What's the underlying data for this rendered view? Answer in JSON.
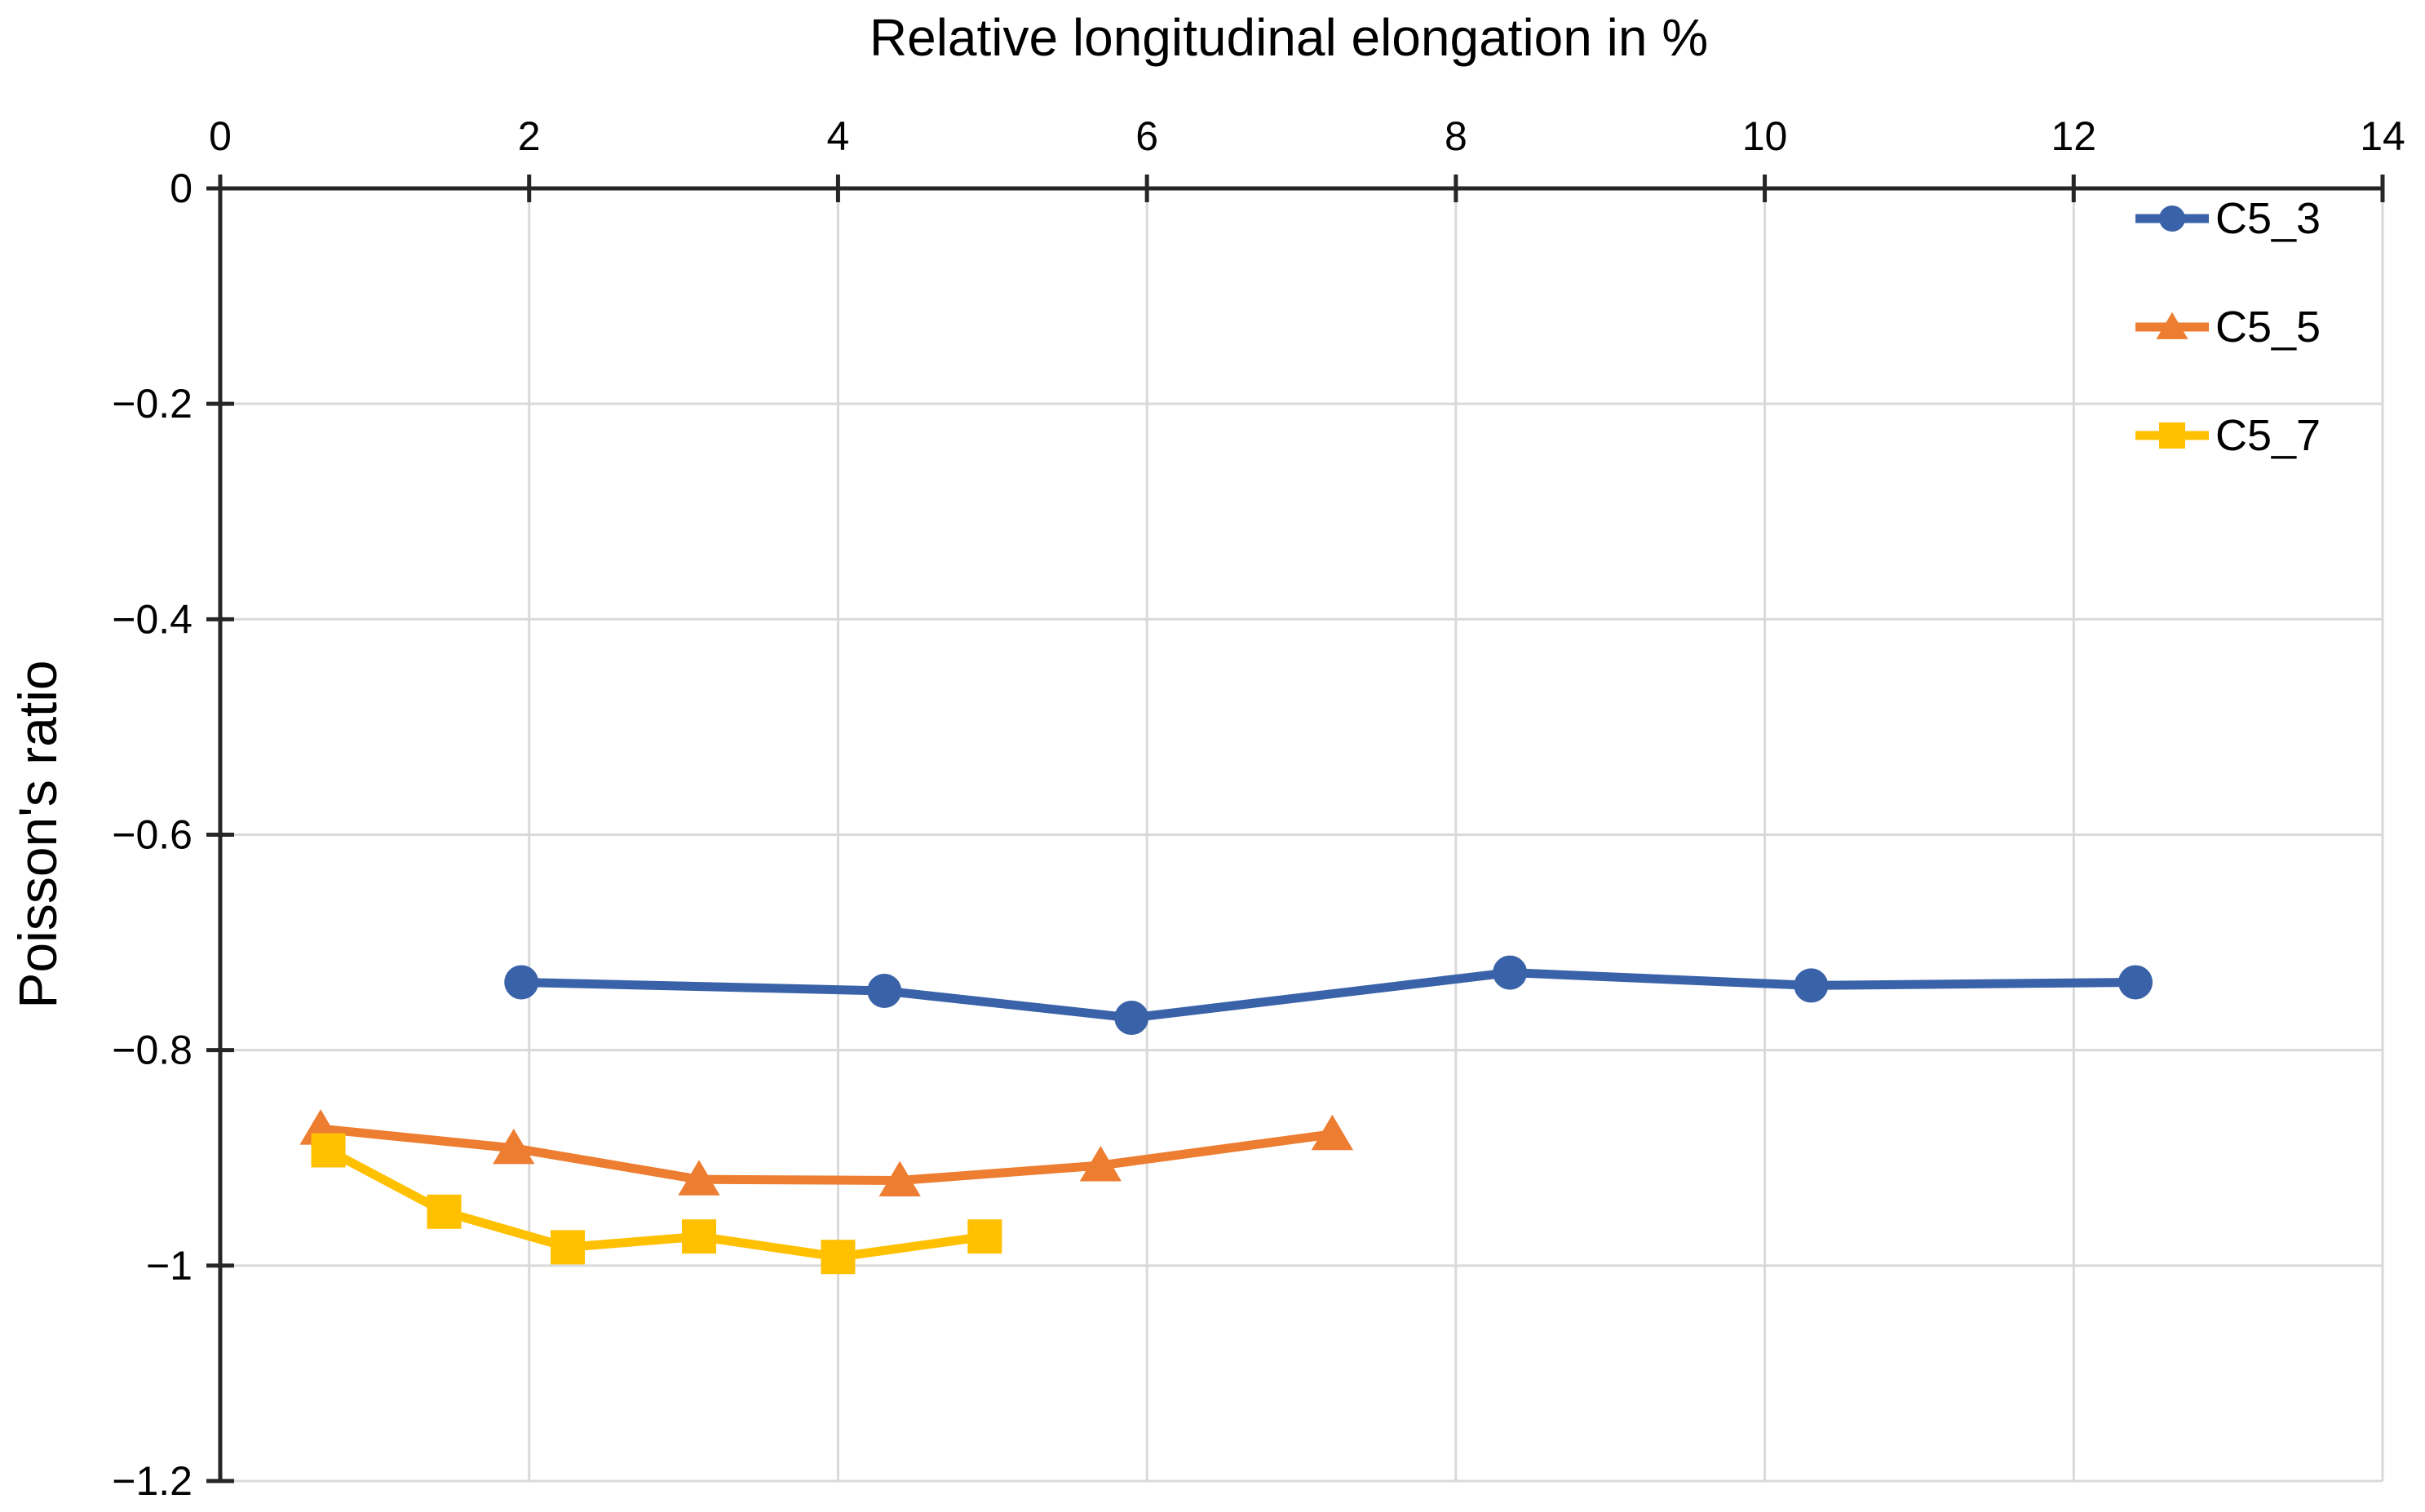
{
  "chart_data": {
    "type": "line",
    "title": "Relative longitudinal elongation in %",
    "xlabel": "Relative longitudinal elongation in %",
    "ylabel": "Poisson's ratio",
    "x_axis_position": "top",
    "xlim": [
      0,
      14
    ],
    "ylim": [
      -1.2,
      0
    ],
    "xticks": [
      0,
      2,
      4,
      6,
      8,
      10,
      12,
      14
    ],
    "yticks": [
      0,
      -0.2,
      -0.4,
      -0.6,
      -0.8,
      -1,
      -1.2
    ],
    "xtick_labels": [
      "0",
      "2",
      "4",
      "6",
      "8",
      "10",
      "12",
      "14"
    ],
    "ytick_labels": [
      "0",
      "−0.2",
      "−0.4",
      "−0.6",
      "−0.8",
      "−1",
      "−1.2"
    ],
    "grid": true,
    "legend_position": "top-right",
    "legend": [
      "C5_3",
      "C5_5",
      "C5_7"
    ],
    "series": [
      {
        "name": "C5_3",
        "color": "#3A62A8",
        "marker": "circle",
        "points": [
          [
            1.95,
            -0.737
          ],
          [
            4.3,
            -0.745
          ],
          [
            5.9,
            -0.77
          ],
          [
            8.35,
            -0.728
          ],
          [
            10.3,
            -0.74
          ],
          [
            12.4,
            -0.737
          ]
        ]
      },
      {
        "name": "C5_5",
        "color": "#ED7D31",
        "marker": "triangle",
        "points": [
          [
            0.65,
            -0.873
          ],
          [
            1.9,
            -0.891
          ],
          [
            3.1,
            -0.92
          ],
          [
            4.4,
            -0.921
          ],
          [
            5.7,
            -0.907
          ],
          [
            7.2,
            -0.878
          ]
        ]
      },
      {
        "name": "C5_7",
        "color": "#FFC000",
        "marker": "square",
        "points": [
          [
            0.7,
            -0.893
          ],
          [
            1.45,
            -0.95
          ],
          [
            2.25,
            -0.983
          ],
          [
            3.1,
            -0.973
          ],
          [
            4.0,
            -0.992
          ],
          [
            4.95,
            -0.973
          ]
        ]
      }
    ],
    "colors": {
      "grid": "#D9D9D9",
      "axis": "#262626",
      "text": "#000000"
    }
  }
}
